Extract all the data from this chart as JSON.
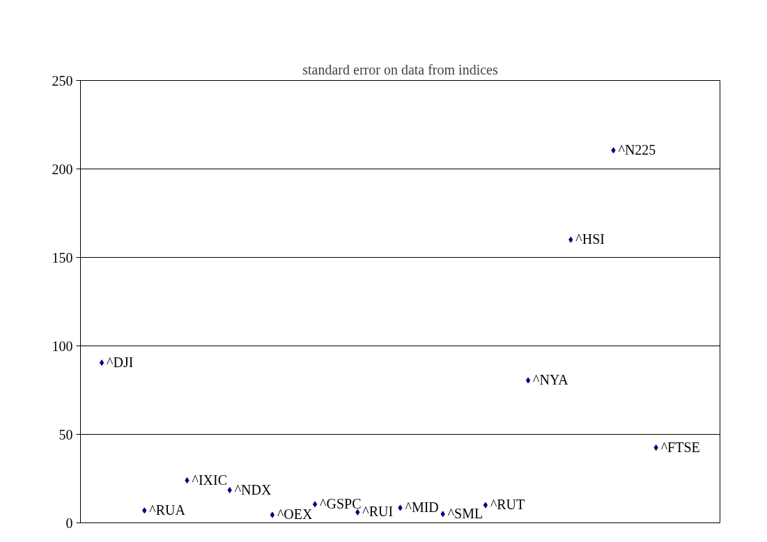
{
  "chart_data": {
    "type": "scatter",
    "title": "standard error on data from indices",
    "categories": [
      null,
      null,
      null,
      null,
      null,
      null,
      null,
      null,
      null,
      null,
      null,
      null,
      null,
      null,
      null
    ],
    "values": [
      90.5,
      7,
      24,
      18.5,
      4.5,
      10.5,
      6,
      8.5,
      5,
      10,
      80.5,
      160,
      210.5,
      42.5,
      null
    ],
    "annotations": [
      "^DJI",
      "^RUA",
      "^IXIC",
      "^NDX",
      "^OEX",
      "^GSPC",
      "^RUI",
      "^MID",
      "^SML",
      "^RUT",
      "^NYA",
      "^HSI",
      "^N225",
      "^FTSE"
    ],
    "color": "#000080",
    "marker": "diamond",
    "ylim": [
      0,
      250
    ],
    "yticks": [
      0,
      50,
      100,
      150,
      200,
      250
    ],
    "grid": "y",
    "tick_labels": "y"
  }
}
